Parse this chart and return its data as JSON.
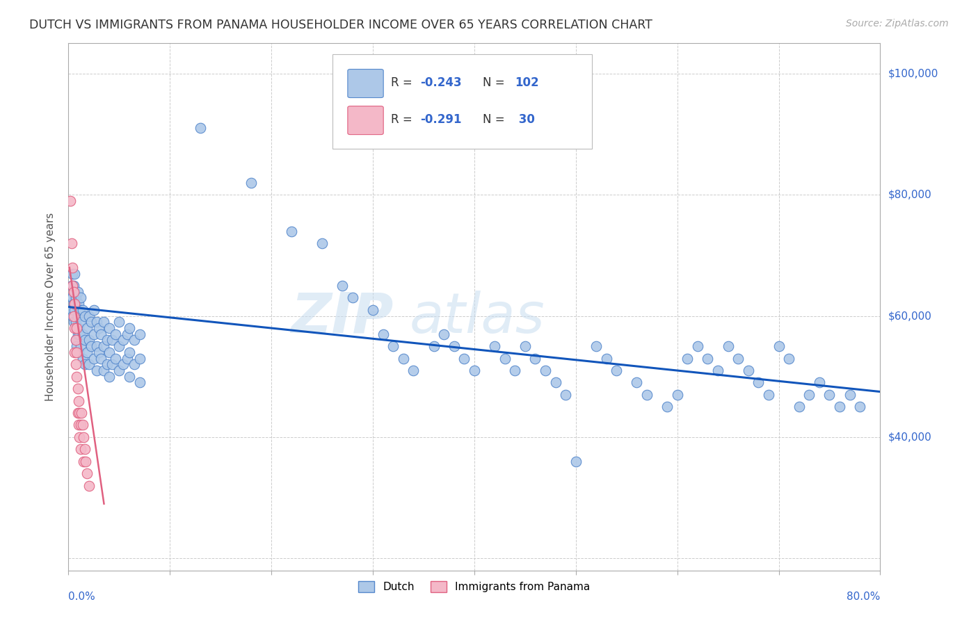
{
  "title": "DUTCH VS IMMIGRANTS FROM PANAMA HOUSEHOLDER INCOME OVER 65 YEARS CORRELATION CHART",
  "source": "Source: ZipAtlas.com",
  "ylabel": "Householder Income Over 65 years",
  "xmin": 0.0,
  "xmax": 0.8,
  "ymin": 18000,
  "ymax": 105000,
  "ytick_vals": [
    20000,
    40000,
    60000,
    80000,
    100000
  ],
  "ytick_labels": [
    "",
    "$40,000",
    "$60,000",
    "$80,000",
    "$100,000"
  ],
  "dutch_color": "#adc8e8",
  "dutch_edge_color": "#5588cc",
  "panama_color": "#f4b8c8",
  "panama_edge_color": "#e06080",
  "trend_dutch_color": "#1155bb",
  "trend_panama_color": "#e06080",
  "right_label_color": "#3366cc",
  "source_color": "#aaaaaa",
  "title_color": "#333333",
  "grid_color": "#cccccc",
  "background_color": "#ffffff",
  "dutch_trend_x": [
    0.0,
    0.8
  ],
  "dutch_trend_y": [
    61500,
    47500
  ],
  "panama_trend_x": [
    0.001,
    0.035
  ],
  "panama_trend_y": [
    68000,
    29000
  ],
  "dutch_scatter": [
    [
      0.003,
      63000
    ],
    [
      0.003,
      61000
    ],
    [
      0.003,
      65000
    ],
    [
      0.004,
      67000
    ],
    [
      0.004,
      63000
    ],
    [
      0.004,
      60000
    ],
    [
      0.005,
      65000
    ],
    [
      0.005,
      62000
    ],
    [
      0.005,
      59000
    ],
    [
      0.006,
      67000
    ],
    [
      0.006,
      64000
    ],
    [
      0.006,
      61000
    ],
    [
      0.007,
      63000
    ],
    [
      0.007,
      59000
    ],
    [
      0.007,
      56000
    ],
    [
      0.008,
      62000
    ],
    [
      0.008,
      58000
    ],
    [
      0.008,
      55000
    ],
    [
      0.009,
      64000
    ],
    [
      0.009,
      60000
    ],
    [
      0.009,
      57000
    ],
    [
      0.01,
      62000
    ],
    [
      0.01,
      58000
    ],
    [
      0.01,
      54000
    ],
    [
      0.011,
      61000
    ],
    [
      0.011,
      57000
    ],
    [
      0.012,
      63000
    ],
    [
      0.012,
      59000
    ],
    [
      0.012,
      55000
    ],
    [
      0.014,
      61000
    ],
    [
      0.014,
      57000
    ],
    [
      0.014,
      53000
    ],
    [
      0.016,
      60000
    ],
    [
      0.016,
      56000
    ],
    [
      0.016,
      52000
    ],
    [
      0.018,
      58000
    ],
    [
      0.018,
      54000
    ],
    [
      0.02,
      60000
    ],
    [
      0.02,
      56000
    ],
    [
      0.02,
      52000
    ],
    [
      0.022,
      59000
    ],
    [
      0.022,
      55000
    ],
    [
      0.025,
      61000
    ],
    [
      0.025,
      57000
    ],
    [
      0.025,
      53000
    ],
    [
      0.028,
      59000
    ],
    [
      0.028,
      55000
    ],
    [
      0.028,
      51000
    ],
    [
      0.03,
      58000
    ],
    [
      0.03,
      54000
    ],
    [
      0.032,
      57000
    ],
    [
      0.032,
      53000
    ],
    [
      0.035,
      59000
    ],
    [
      0.035,
      55000
    ],
    [
      0.035,
      51000
    ],
    [
      0.038,
      56000
    ],
    [
      0.038,
      52000
    ],
    [
      0.04,
      58000
    ],
    [
      0.04,
      54000
    ],
    [
      0.04,
      50000
    ],
    [
      0.043,
      56000
    ],
    [
      0.043,
      52000
    ],
    [
      0.046,
      57000
    ],
    [
      0.046,
      53000
    ],
    [
      0.05,
      59000
    ],
    [
      0.05,
      55000
    ],
    [
      0.05,
      51000
    ],
    [
      0.054,
      56000
    ],
    [
      0.054,
      52000
    ],
    [
      0.058,
      57000
    ],
    [
      0.058,
      53000
    ],
    [
      0.06,
      58000
    ],
    [
      0.06,
      54000
    ],
    [
      0.06,
      50000
    ],
    [
      0.065,
      56000
    ],
    [
      0.065,
      52000
    ],
    [
      0.07,
      57000
    ],
    [
      0.07,
      53000
    ],
    [
      0.07,
      49000
    ],
    [
      0.13,
      91000
    ],
    [
      0.18,
      82000
    ],
    [
      0.22,
      74000
    ],
    [
      0.25,
      72000
    ],
    [
      0.27,
      65000
    ],
    [
      0.28,
      63000
    ],
    [
      0.3,
      61000
    ],
    [
      0.31,
      57000
    ],
    [
      0.32,
      55000
    ],
    [
      0.33,
      53000
    ],
    [
      0.34,
      51000
    ],
    [
      0.36,
      55000
    ],
    [
      0.37,
      57000
    ],
    [
      0.38,
      55000
    ],
    [
      0.39,
      53000
    ],
    [
      0.4,
      51000
    ],
    [
      0.42,
      55000
    ],
    [
      0.43,
      53000
    ],
    [
      0.44,
      51000
    ],
    [
      0.45,
      55000
    ],
    [
      0.46,
      53000
    ],
    [
      0.47,
      51000
    ],
    [
      0.48,
      49000
    ],
    [
      0.49,
      47000
    ],
    [
      0.5,
      36000
    ],
    [
      0.52,
      55000
    ],
    [
      0.53,
      53000
    ],
    [
      0.54,
      51000
    ],
    [
      0.56,
      49000
    ],
    [
      0.57,
      47000
    ],
    [
      0.59,
      45000
    ],
    [
      0.6,
      47000
    ],
    [
      0.61,
      53000
    ],
    [
      0.62,
      55000
    ],
    [
      0.63,
      53000
    ],
    [
      0.64,
      51000
    ],
    [
      0.65,
      55000
    ],
    [
      0.66,
      53000
    ],
    [
      0.67,
      51000
    ],
    [
      0.68,
      49000
    ],
    [
      0.69,
      47000
    ],
    [
      0.7,
      55000
    ],
    [
      0.71,
      53000
    ],
    [
      0.72,
      45000
    ],
    [
      0.73,
      47000
    ],
    [
      0.74,
      49000
    ],
    [
      0.75,
      47000
    ],
    [
      0.76,
      45000
    ],
    [
      0.77,
      47000
    ],
    [
      0.78,
      45000
    ]
  ],
  "panama_scatter": [
    [
      0.002,
      79000
    ],
    [
      0.003,
      72000
    ],
    [
      0.004,
      68000
    ],
    [
      0.004,
      65000
    ],
    [
      0.005,
      64000
    ],
    [
      0.005,
      60000
    ],
    [
      0.006,
      62000
    ],
    [
      0.006,
      58000
    ],
    [
      0.006,
      54000
    ],
    [
      0.007,
      56000
    ],
    [
      0.007,
      52000
    ],
    [
      0.008,
      58000
    ],
    [
      0.008,
      54000
    ],
    [
      0.008,
      50000
    ],
    [
      0.009,
      48000
    ],
    [
      0.009,
      44000
    ],
    [
      0.01,
      46000
    ],
    [
      0.01,
      42000
    ],
    [
      0.011,
      44000
    ],
    [
      0.011,
      40000
    ],
    [
      0.012,
      42000
    ],
    [
      0.012,
      38000
    ],
    [
      0.013,
      44000
    ],
    [
      0.014,
      42000
    ],
    [
      0.015,
      40000
    ],
    [
      0.015,
      36000
    ],
    [
      0.016,
      38000
    ],
    [
      0.017,
      36000
    ],
    [
      0.018,
      34000
    ],
    [
      0.02,
      32000
    ]
  ]
}
